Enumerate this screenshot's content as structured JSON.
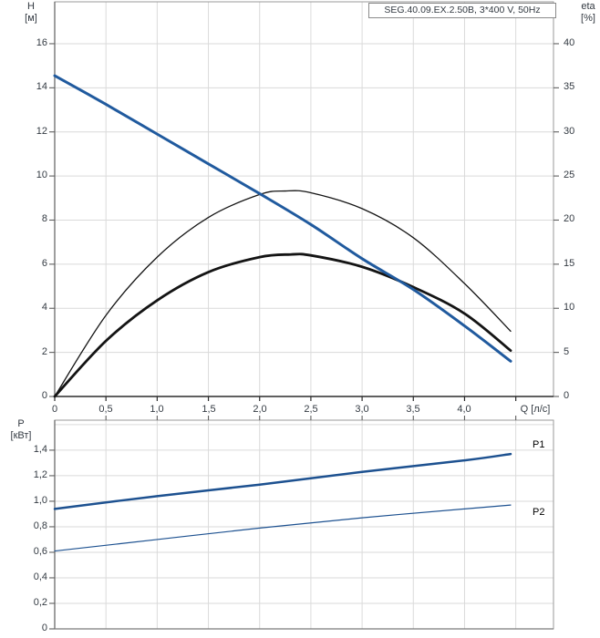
{
  "header": {
    "title_box": "SEG.40.09.EX.2.50B, 3*400 V, 50Hz"
  },
  "axes": {
    "h_title_line1": "H",
    "h_title_line2": "[м]",
    "eta_title_line1": "eta",
    "eta_title_line2": "[%]",
    "p_title_line1": "P",
    "p_title_line2": "[кВт]",
    "q_title": "Q [л/с]"
  },
  "series_labels": {
    "p1": "P1",
    "p2": "P2"
  },
  "colors": {
    "curve_blue": "#205a9e",
    "power_blue": "#1d5190",
    "eta_black": "#141414",
    "grid": "#dadada",
    "frame": "#9a9a9a",
    "axis_dark": "#2b2b2b",
    "axis_mid": "#5f5f5f",
    "text": "#333a42"
  },
  "chart_data": [
    {
      "id": "hq-chart",
      "type": "line",
      "title": "SEG.40.09.EX.2.50B, 3*400 V, 50Hz",
      "xlabel": "Q [л/с]",
      "ylabel_left": "H [м]",
      "ylabel_right": "eta [%]",
      "xlim": [
        0,
        4.868
      ],
      "ylim_left": [
        0,
        17.9
      ],
      "ylim_right": [
        0,
        44.75
      ],
      "grid": true,
      "x_grid": [
        0.5,
        1.0,
        1.5,
        2.0,
        2.5,
        3.0,
        3.5,
        4.0,
        4.5
      ],
      "x_tick_marks": [
        0,
        0.5,
        1.0,
        1.5,
        2.0,
        2.5,
        3.0,
        3.5,
        4.0,
        4.5
      ],
      "x_ticks": [
        {
          "v": 0,
          "label": "0"
        },
        {
          "v": 0.5,
          "label": "0,5"
        },
        {
          "v": 1.0,
          "label": "1,0"
        },
        {
          "v": 1.5,
          "label": "1,5"
        },
        {
          "v": 2.0,
          "label": "2,0"
        },
        {
          "v": 2.5,
          "label": "2,5"
        },
        {
          "v": 3.0,
          "label": "3,0"
        },
        {
          "v": 3.5,
          "label": "3,5"
        },
        {
          "v": 4.0,
          "label": "4,0"
        }
      ],
      "left_grid": [
        2,
        4,
        6,
        8,
        10,
        12,
        14,
        16
      ],
      "left_ticks": [
        {
          "v": 16,
          "label": "16"
        },
        {
          "v": 14,
          "label": "14"
        },
        {
          "v": 12,
          "label": "12"
        },
        {
          "v": 10,
          "label": "10"
        },
        {
          "v": 8,
          "label": "8"
        },
        {
          "v": 6,
          "label": "6"
        },
        {
          "v": 4,
          "label": "4"
        },
        {
          "v": 2,
          "label": "2"
        },
        {
          "v": 0,
          "label": "0"
        }
      ],
      "right_ticks": [
        {
          "v": 40,
          "label": "40"
        },
        {
          "v": 35,
          "label": "35"
        },
        {
          "v": 30,
          "label": "30"
        },
        {
          "v": 25,
          "label": "25"
        },
        {
          "v": 20,
          "label": "20"
        },
        {
          "v": 15,
          "label": "15"
        },
        {
          "v": 10,
          "label": "10"
        },
        {
          "v": 5,
          "label": "5"
        },
        {
          "v": 0,
          "label": "0"
        }
      ],
      "series": [
        {
          "name": "eta1-efficiency-curve",
          "axis": "right",
          "color_key": "eta_black",
          "width": 1.3,
          "points": [
            [
              0,
              0
            ],
            [
              0.5,
              9.2
            ],
            [
              1.0,
              15.8
            ],
            [
              1.5,
              20.3
            ],
            [
              2.0,
              22.9
            ],
            [
              2.25,
              23.3
            ],
            [
              2.5,
              23.1
            ],
            [
              3.0,
              21.3
            ],
            [
              3.5,
              18.0
            ],
            [
              4.0,
              12.8
            ],
            [
              4.45,
              7.4
            ]
          ]
        },
        {
          "name": "eta2-efficiency-curve",
          "axis": "right",
          "color_key": "eta_black",
          "width": 2.8,
          "points": [
            [
              0,
              0
            ],
            [
              0.5,
              6.3
            ],
            [
              1.0,
              10.9
            ],
            [
              1.5,
              14.1
            ],
            [
              2.0,
              15.8
            ],
            [
              2.3,
              16.1
            ],
            [
              2.5,
              16.0
            ],
            [
              3.0,
              14.7
            ],
            [
              3.5,
              12.4
            ],
            [
              4.0,
              9.4
            ],
            [
              4.45,
              5.2
            ]
          ]
        },
        {
          "name": "pump-head-curve",
          "axis": "left",
          "color_key": "curve_blue",
          "width": 3,
          "points": [
            [
              0,
              14.55
            ],
            [
              0.5,
              13.25
            ],
            [
              1.0,
              11.9
            ],
            [
              1.5,
              10.55
            ],
            [
              2.0,
              9.2
            ],
            [
              2.5,
              7.8
            ],
            [
              3.0,
              6.25
            ],
            [
              3.5,
              4.85
            ],
            [
              4.0,
              3.2
            ],
            [
              4.45,
              1.6
            ]
          ]
        }
      ]
    },
    {
      "id": "pq-chart",
      "type": "line",
      "xlabel": "",
      "ylabel_left": "P [кВт]",
      "xlim": [
        0,
        4.868
      ],
      "ylim_left": [
        0,
        1.635
      ],
      "grid": true,
      "x_grid": [
        0.5,
        1.0,
        1.5,
        2.0,
        2.5,
        3.0,
        3.5,
        4.0,
        4.5
      ],
      "x_tick_marks": [
        0.5,
        1.0,
        1.5,
        2.0,
        2.5,
        3.0,
        3.5,
        4.0,
        4.5
      ],
      "x_ticks": [],
      "left_grid": [
        0.2,
        0.4,
        0.6,
        0.8,
        1.0,
        1.2,
        1.4,
        1.6
      ],
      "left_ticks": [
        {
          "v": 1.4,
          "label": "1,4"
        },
        {
          "v": 1.2,
          "label": "1,2"
        },
        {
          "v": 1.0,
          "label": "1,0"
        },
        {
          "v": 0.8,
          "label": "0,8"
        },
        {
          "v": 0.6,
          "label": "0,6"
        },
        {
          "v": 0.4,
          "label": "0,4"
        },
        {
          "v": 0.2,
          "label": "0,2"
        },
        {
          "v": 0,
          "label": "0"
        }
      ],
      "right_ticks": [],
      "series": [
        {
          "name": "p1-power-curve",
          "axis": "left",
          "color_key": "power_blue",
          "width": 2.5,
          "points": [
            [
              0,
              0.94
            ],
            [
              1.0,
              1.04
            ],
            [
              2.0,
              1.13
            ],
            [
              3.0,
              1.23
            ],
            [
              4.0,
              1.32
            ],
            [
              4.45,
              1.37
            ]
          ]
        },
        {
          "name": "p2-power-curve",
          "axis": "left",
          "color_key": "power_blue",
          "width": 1.2,
          "points": [
            [
              0,
              0.61
            ],
            [
              1.0,
              0.7
            ],
            [
              2.0,
              0.79
            ],
            [
              3.0,
              0.87
            ],
            [
              4.0,
              0.94
            ],
            [
              4.45,
              0.97
            ]
          ]
        }
      ]
    }
  ]
}
